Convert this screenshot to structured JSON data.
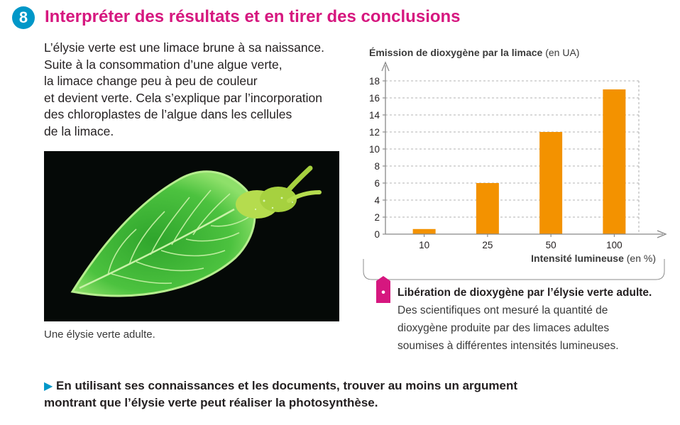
{
  "exercise": {
    "number": "8",
    "title": "Interpréter des résultats et en tirer des conclusions"
  },
  "intro": {
    "lines": [
      "L’élysie verte est une limace brune à sa naissance.",
      "Suite à la consommation d’une algue verte,",
      "la limace change peu à peu de couleur",
      "et devient verte. Cela s’explique par l’incorporation",
      "des chloroplastes de l’algue dans les cellules",
      "de la limace."
    ]
  },
  "photo": {
    "caption": "Une élysie verte adulte.",
    "colors": {
      "background": "#050907",
      "body": "#3fb83a",
      "veins": "#c9f2a8",
      "head": "#b5dc4e"
    }
  },
  "chart_data": {
    "type": "bar",
    "title_bold": "Émission de dioxygène par la limace",
    "title_unit": "(en UA)",
    "xlabel_bold": "Intensité lumineuse",
    "xlabel_unit": "(en %)",
    "categories": [
      "10",
      "25",
      "50",
      "100"
    ],
    "values": [
      0.6,
      6,
      12,
      17
    ],
    "yticks": [
      "0",
      "2",
      "4",
      "6",
      "8",
      "10",
      "12",
      "14",
      "16",
      "18"
    ],
    "ylim": [
      0,
      18
    ],
    "grid": "dashed",
    "bar_color": "#f39200"
  },
  "document": {
    "marker": "•",
    "title_bold": "Libération de dioxygène par l’élysie verte adulte.",
    "text": "Des scientifiques ont mesuré la quantité de dioxygène produite par des limaces adultes soumises à différentes intensités lumineuses."
  },
  "task": {
    "arrow": "▶",
    "text_plain": "En utilisant ses connaissances et les documents,",
    "text_bold": "trouver au moins un argument",
    "text_end": "montrant que l’élysie verte peut réaliser la photosynthèse."
  },
  "colors": {
    "accent_pink": "#d6177f",
    "accent_blue": "#0097c8"
  }
}
